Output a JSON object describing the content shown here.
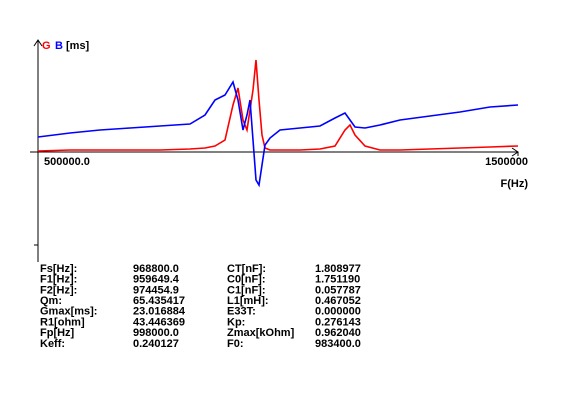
{
  "chart_data": {
    "type": "line",
    "series_label_suffix": "[ms]",
    "xlabel": "F(Hz)",
    "x": [
      500000,
      566667,
      629167,
      691667,
      754167,
      816667,
      847917,
      868750,
      889583,
      906250,
      916667,
      927083,
      935417,
      941667,
      947917,
      954167,
      960417,
      966667,
      972917,
      983333,
      1004167,
      1045833,
      1087500,
      1118750,
      1139583,
      1150000,
      1160417,
      1181250,
      1212500,
      1254167,
      1316667,
      1379167,
      1441667,
      1500000
    ],
    "series": [
      {
        "name": "G",
        "color": "#ff0000",
        "values": [
          0.25,
          0.5,
          0.5,
          0.5,
          0.5,
          0.75,
          1,
          1.5,
          3,
          11.75,
          16,
          8,
          5.5,
          10.5,
          15.5,
          23,
          13,
          4.25,
          1,
          0.5,
          0.5,
          0.5,
          0.75,
          1.5,
          5.5,
          6.75,
          4.25,
          1.5,
          0.5,
          0.5,
          0.75,
          1,
          1.25,
          1.5
        ]
      },
      {
        "name": "B",
        "color": "#0000ff",
        "values": [
          3.75,
          4.75,
          5.5,
          6,
          6.5,
          7,
          9.25,
          13,
          14.25,
          17.5,
          13,
          5.5,
          9.25,
          13,
          3,
          -7,
          -8.25,
          -3.25,
          1.75,
          3.5,
          5.5,
          6,
          6.5,
          8.5,
          9.75,
          8,
          6.25,
          6,
          6.75,
          8,
          9,
          10,
          11.25,
          11.75
        ]
      }
    ],
    "xlim": [
      500000,
      1500000
    ],
    "xticks": [
      {
        "value": 500000,
        "label": "500000.0"
      },
      1500000
    ],
    "ylim": [
      -27.5,
      28
    ]
  },
  "params": {
    "rows": [
      [
        "Fs[Hz]:",
        "968800.0",
        "CT[nF]:",
        "1.808977"
      ],
      [
        "F1[Hz]:",
        "959649.4",
        "C0[nF]:",
        "1.751190"
      ],
      [
        "F2[Hz]:",
        "974454.9",
        "C1[nF]:",
        "0.057787"
      ],
      [
        "Qm:",
        "65.435417",
        "L1[mH]:",
        "0.467052"
      ],
      [
        "Gmax[ms]:",
        "23.016884",
        "E33T:",
        "0.000000"
      ],
      [
        "R1[ohm]",
        "43.446369",
        "Kp:",
        "0.276143"
      ],
      [
        "Fp[Hz]",
        "998000.0",
        "Zmax[kOhm]",
        "0.962040"
      ],
      [
        "Keff:",
        "0.240127",
        "F0:",
        "983400.0"
      ]
    ]
  }
}
